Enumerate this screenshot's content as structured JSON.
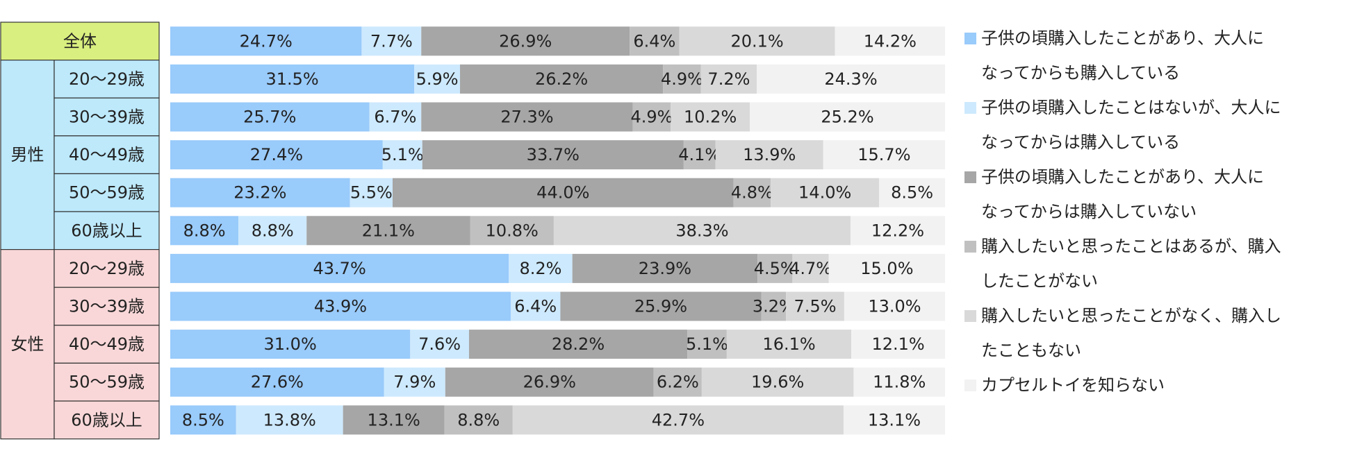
{
  "chart_data": {
    "type": "bar",
    "orientation": "horizontal",
    "stacked": "percent",
    "grid": false,
    "legend_position": "right",
    "row_groups": [
      {
        "label": "全体",
        "color": "#d9ef7f",
        "rows": [
          0
        ]
      },
      {
        "label": "男性",
        "color": "#bde9fb",
        "rows": [
          1,
          2,
          3,
          4,
          5
        ]
      },
      {
        "label": "女性",
        "color": "#f9d7d8",
        "rows": [
          6,
          7,
          8,
          9,
          10
        ]
      }
    ],
    "categories": [
      "",
      "20～29歳",
      "30～39歳",
      "40～49歳",
      "50～59歳",
      "60歳以上",
      "20～29歳",
      "30～39歳",
      "40～49歳",
      "50～59歳",
      "60歳以上"
    ],
    "series": [
      {
        "name": "子供の頃購入したことがあり、大人になってからも購入している",
        "color": "#99cbfb",
        "values": [
          24.7,
          31.5,
          25.7,
          27.4,
          23.2,
          8.8,
          43.7,
          43.9,
          31.0,
          27.6,
          8.5
        ]
      },
      {
        "name": "子供の頃購入したことはないが、大人になってからは購入している",
        "color": "#cde9fd",
        "values": [
          7.7,
          5.9,
          6.7,
          5.1,
          5.5,
          8.8,
          8.2,
          6.4,
          7.6,
          7.9,
          13.8
        ]
      },
      {
        "name": "子供の頃購入したことがあり、大人になってからは購入していない",
        "color": "#a6a6a6",
        "values": [
          26.9,
          26.2,
          27.3,
          33.7,
          44.0,
          21.1,
          23.9,
          25.9,
          28.2,
          26.9,
          13.1
        ]
      },
      {
        "name": "購入したいと思ったことはあるが、購入したことがない",
        "color": "#c0c0c0",
        "values": [
          6.4,
          4.9,
          4.9,
          4.1,
          4.8,
          10.8,
          4.5,
          3.2,
          5.1,
          6.2,
          8.8
        ]
      },
      {
        "name": "購入したいと思ったことがなく、購入したこともない",
        "color": "#d9d9d9",
        "values": [
          20.1,
          7.2,
          10.2,
          13.9,
          14.0,
          38.3,
          4.7,
          7.5,
          16.1,
          19.6,
          42.7
        ]
      },
      {
        "name": "カプセルトイを知らない",
        "color": "#f2f2f2",
        "values": [
          14.2,
          24.3,
          25.2,
          15.7,
          8.5,
          12.2,
          15.0,
          13.0,
          12.1,
          11.8,
          13.1
        ]
      }
    ],
    "legend_lines": [
      [
        "子供の頃購入したことがあり、大人に",
        "なってからも購入している"
      ],
      [
        "子供の頃購入したことはないが、大人に",
        "なってからは購入している"
      ],
      [
        "子供の頃購入したことがあり、大人に",
        "なってからは購入していない"
      ],
      [
        "購入したいと思ったことはあるが、購入",
        "したことがない"
      ],
      [
        "購入したいと思ったことがなく、購入し",
        "たこともない"
      ],
      [
        "カプセルトイを知らない"
      ]
    ]
  }
}
